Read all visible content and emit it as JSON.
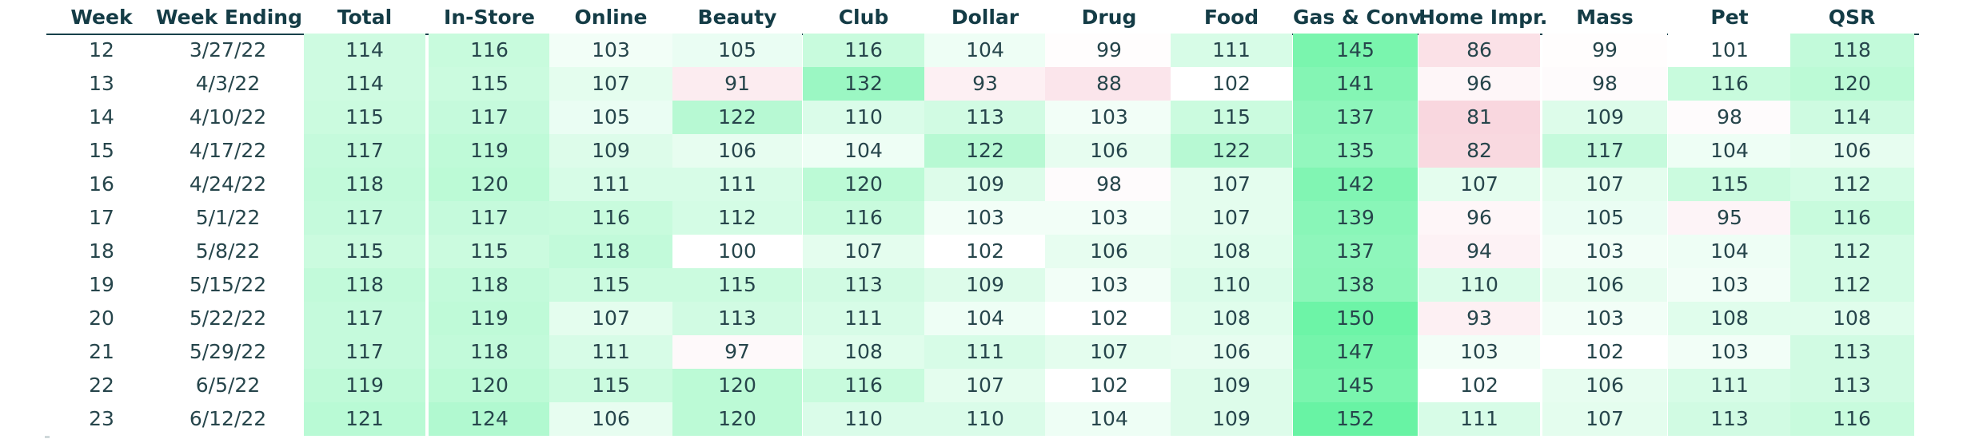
{
  "chart_data": {
    "type": "table",
    "columns": [
      "Week",
      "Week Ending",
      "Total",
      "In-Store",
      "Online",
      "Beauty",
      "Club",
      "Dollar",
      "Drug",
      "Food",
      "Gas & Conv.",
      "Home Impr.",
      "Mass",
      "Pet",
      "QSR"
    ],
    "rows": [
      [
        "12",
        "3/27/22",
        114,
        116,
        103,
        105,
        116,
        104,
        99,
        111,
        145,
        86,
        99,
        101,
        118
      ],
      [
        "13",
        "4/3/22",
        114,
        115,
        107,
        91,
        132,
        93,
        88,
        102,
        141,
        96,
        98,
        116,
        120
      ],
      [
        "14",
        "4/10/22",
        115,
        117,
        105,
        122,
        110,
        113,
        103,
        115,
        137,
        81,
        109,
        98,
        114
      ],
      [
        "15",
        "4/17/22",
        117,
        119,
        109,
        106,
        104,
        122,
        106,
        122,
        135,
        82,
        117,
        104,
        106
      ],
      [
        "16",
        "4/24/22",
        118,
        120,
        111,
        111,
        120,
        109,
        98,
        107,
        142,
        107,
        107,
        115,
        112
      ],
      [
        "17",
        "5/1/22",
        117,
        117,
        116,
        112,
        116,
        103,
        103,
        107,
        139,
        96,
        105,
        95,
        116
      ],
      [
        "18",
        "5/8/22",
        115,
        115,
        118,
        100,
        107,
        102,
        106,
        108,
        137,
        94,
        103,
        104,
        112
      ],
      [
        "19",
        "5/15/22",
        118,
        118,
        115,
        115,
        113,
        109,
        103,
        110,
        138,
        110,
        106,
        103,
        112
      ],
      [
        "20",
        "5/22/22",
        117,
        119,
        107,
        113,
        111,
        104,
        102,
        108,
        150,
        93,
        103,
        108,
        108
      ],
      [
        "21",
        "5/29/22",
        117,
        118,
        111,
        97,
        108,
        111,
        107,
        106,
        147,
        103,
        102,
        103,
        113
      ],
      [
        "22",
        "6/5/22",
        119,
        120,
        115,
        120,
        116,
        107,
        102,
        109,
        145,
        102,
        106,
        111,
        113
      ],
      [
        "23",
        "6/12/22",
        121,
        124,
        106,
        120,
        110,
        110,
        104,
        109,
        152,
        111,
        107,
        113,
        116
      ]
    ],
    "heatmap": {
      "baseline": 100,
      "low_color": "#f7c9d4",
      "high_color": "#3ef08a"
    }
  }
}
